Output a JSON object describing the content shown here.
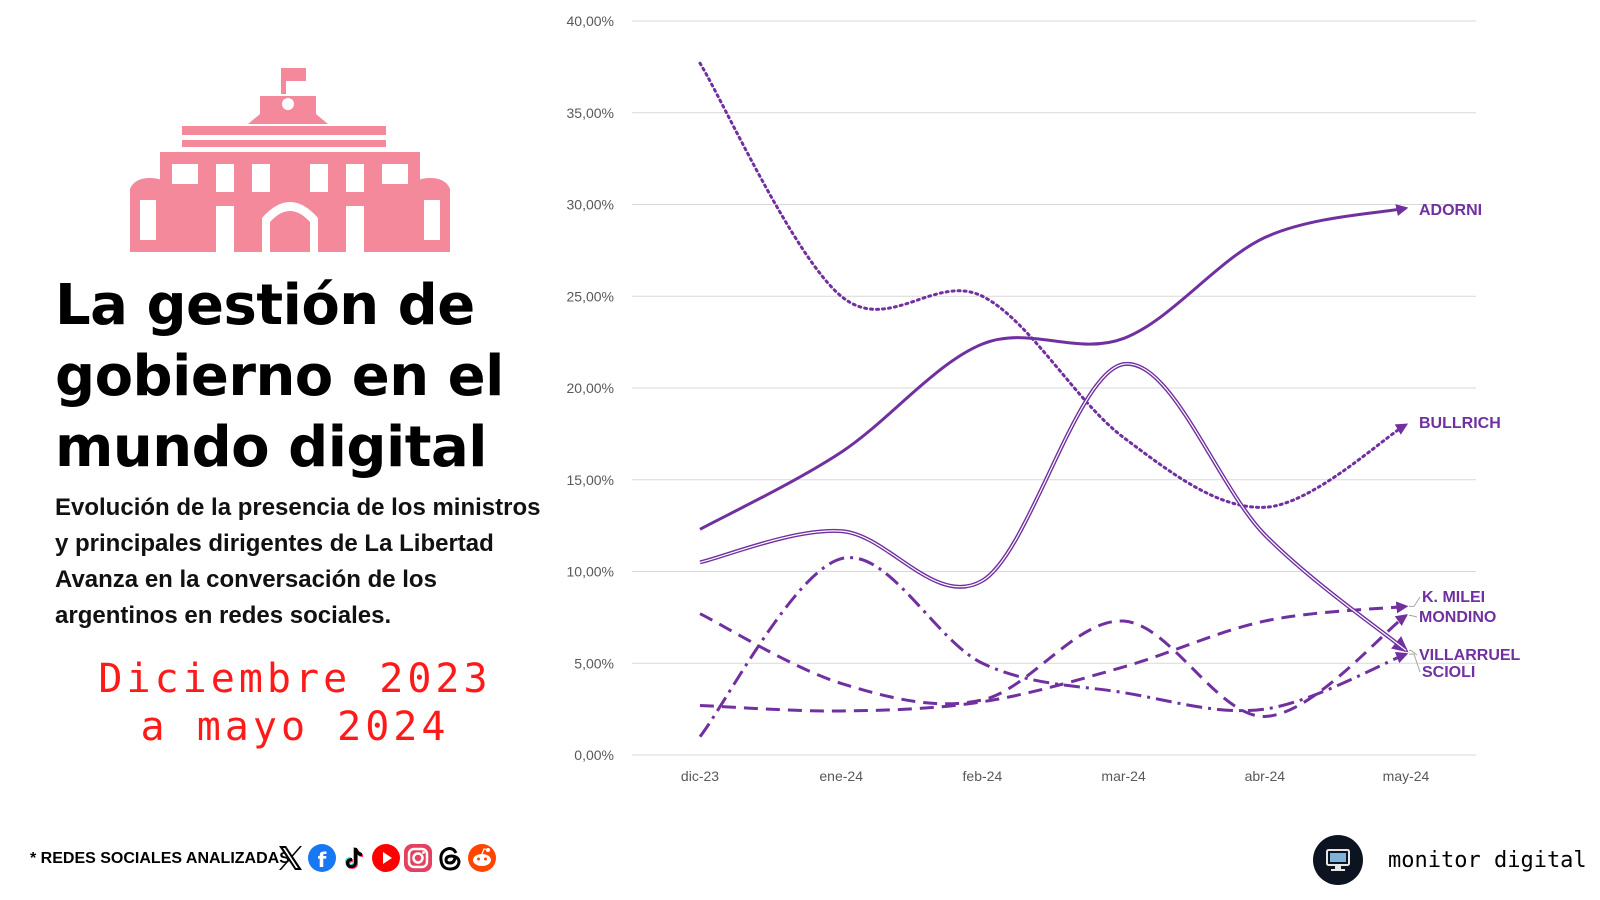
{
  "header": {
    "title": "La gestión de gobierno en el mundo digital",
    "subtitle": "Evolución de la presencia de los ministros y principales dirigentes de La Libertad Avanza en la conversación de los argentinos en redes sociales.",
    "date_line1": "Diciembre 2023",
    "date_line2": "a mayo 2024"
  },
  "footer": {
    "note": "* REDES SOCIALES ANALIZADAS",
    "networks": [
      "x-icon",
      "facebook-icon",
      "tiktok-icon",
      "youtube-icon",
      "instagram-icon",
      "threads-icon",
      "reddit-icon"
    ],
    "brand": "monitor digital"
  },
  "colors": {
    "accent": "#7030a0",
    "building": "#f4899b",
    "date": "#ff1a1a",
    "grid": "#d9d9d9",
    "axis_text": "#595959"
  },
  "chart_data": {
    "type": "line",
    "categories": [
      "dic-23",
      "ene-24",
      "feb-24",
      "mar-24",
      "abr-24",
      "may-24"
    ],
    "ylim": [
      0,
      40
    ],
    "yticks": [
      0,
      5,
      10,
      15,
      20,
      25,
      30,
      35,
      40
    ],
    "ytick_labels": [
      "0,00%",
      "5,00%",
      "10,00%",
      "15,00%",
      "20,00%",
      "25,00%",
      "30,00%",
      "35,00%",
      "40,00%"
    ],
    "xlabel": "",
    "ylabel": "",
    "grid": true,
    "series": [
      {
        "name": "ADORNI",
        "style": "solid",
        "values": [
          12.3,
          16.5,
          22.4,
          22.7,
          28.2,
          29.8
        ]
      },
      {
        "name": "BULLRICH",
        "style": "dotted",
        "values": [
          37.7,
          25.0,
          25.0,
          17.3,
          13.5,
          18.0
        ]
      },
      {
        "name": "K. MILEI",
        "style": "dashed",
        "values": [
          2.7,
          2.4,
          2.9,
          4.8,
          7.3,
          8.1
        ]
      },
      {
        "name": "MONDINO",
        "style": "dashed",
        "values": [
          7.7,
          3.9,
          3.0,
          7.3,
          2.1,
          7.6
        ]
      },
      {
        "name": "VILLARRUEL",
        "style": "double",
        "values": [
          10.5,
          12.2,
          9.5,
          21.3,
          12.0,
          5.7
        ]
      },
      {
        "name": "SCIOLI",
        "style": "dashdot",
        "values": [
          1.0,
          10.7,
          5.0,
          3.4,
          2.5,
          5.5
        ]
      }
    ]
  }
}
